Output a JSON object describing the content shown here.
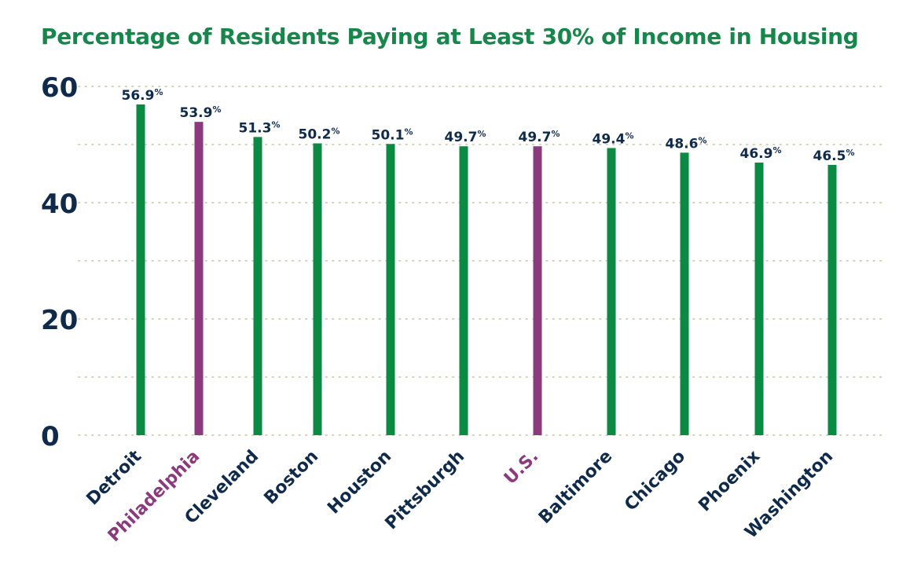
{
  "chart_data": {
    "type": "bar",
    "title": "Percentage of Residents Paying at Least 30% of Income in Housing",
    "categories": [
      "Detroit",
      "Philadelphia",
      "Cleveland",
      "Boston",
      "Houston",
      "Pittsburgh",
      "U.S.",
      "Baltimore",
      "Chicago",
      "Phoenix",
      "Washington"
    ],
    "values": [
      56.9,
      53.9,
      51.3,
      50.2,
      50.1,
      49.7,
      49.7,
      49.4,
      48.6,
      46.9,
      46.5
    ],
    "data_labels": [
      "56.9%",
      "53.9%",
      "51.3%",
      "50.2%",
      "50.1%",
      "49.7%",
      "49.7%",
      "49.4%",
      "48.6%",
      "46.9%",
      "46.5%"
    ],
    "highlighted": [
      "Philadelphia",
      "U.S."
    ],
    "ylim": [
      0,
      60
    ],
    "yticks": [
      "0",
      "20",
      "40",
      "60"
    ],
    "grid": "dotted horizontal",
    "colors": {
      "bar": "#0b8a44",
      "highlight": "#8b3a7e",
      "label": "#0f2a4a",
      "title": "#16864a",
      "grid": "#cfd8b8"
    }
  }
}
